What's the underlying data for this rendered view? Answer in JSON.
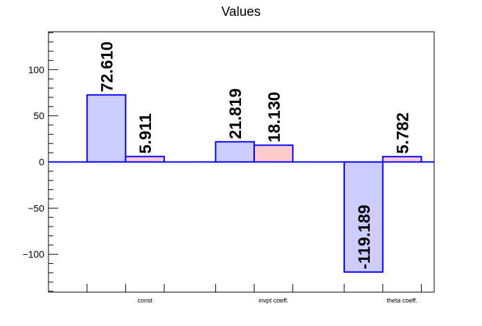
{
  "chart_data": {
    "type": "bar",
    "title": "Values",
    "xlabel": "",
    "ylabel": "",
    "categories": [
      "const",
      "invpt coeff.",
      "theta coeff."
    ],
    "series": [
      {
        "values": [
          72.61,
          21.819,
          -119.189
        ],
        "labels": [
          "72.610",
          "21.819",
          "-119.189"
        ],
        "color": "#ccccff"
      },
      {
        "values": [
          5.911,
          18.13,
          5.782
        ],
        "labels": [
          "5.911",
          "18.130",
          "5.782"
        ],
        "color": "#ffcccc"
      }
    ],
    "bar_stroke": "#0000ff",
    "ylim": [
      -141,
      141
    ],
    "yticks": [
      -100,
      -50,
      0,
      50,
      100
    ],
    "ytick_labels": [
      "−100",
      "−50",
      "0",
      "50",
      "100"
    ],
    "grid": false,
    "legend": "none"
  }
}
